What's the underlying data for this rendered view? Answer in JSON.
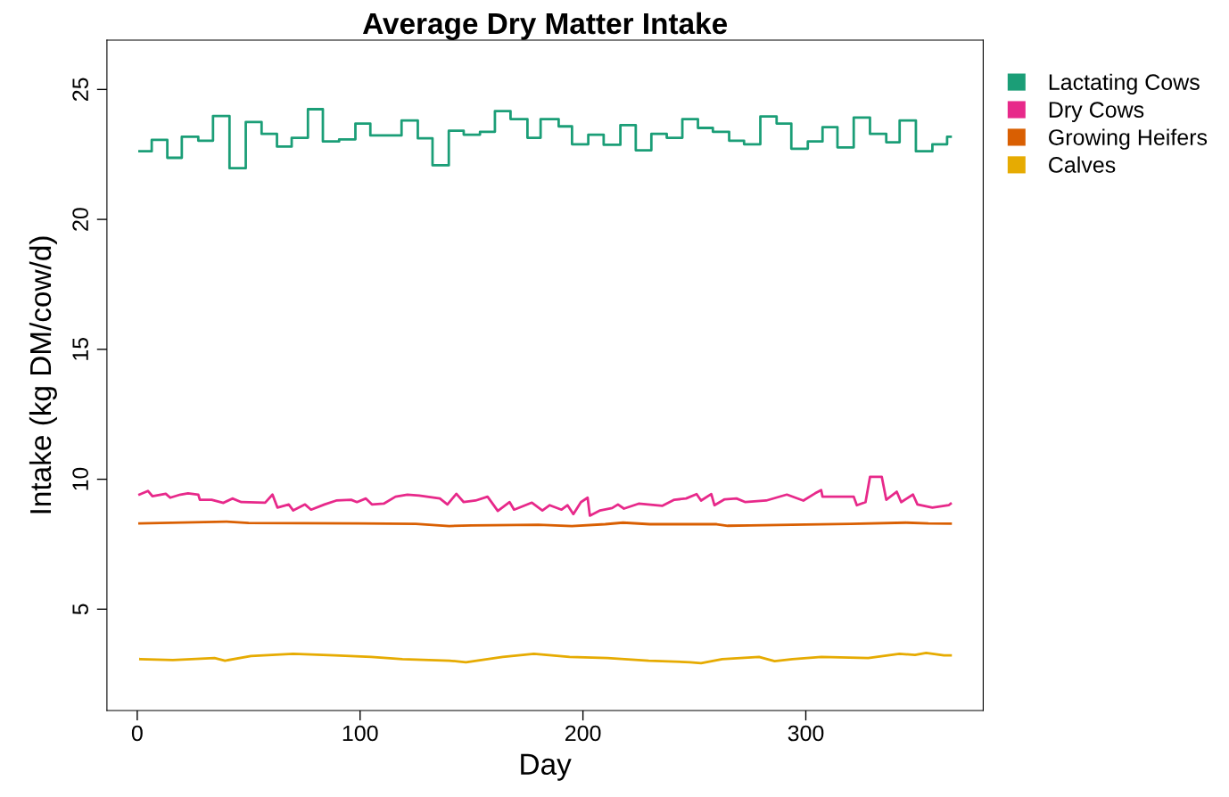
{
  "chart_data": {
    "type": "line",
    "title": "Average Dry Matter Intake",
    "xlabel": "Day",
    "ylabel": "Intake (kg DM/cow/d)",
    "xlim": [
      -13.6,
      379.6
    ],
    "ylim": [
      1.1,
      26.9
    ],
    "xticks": [
      0,
      100,
      200,
      300
    ],
    "yticks": [
      5,
      10,
      15,
      20,
      25
    ],
    "grid": false,
    "legend": "top right",
    "series": [
      {
        "name": "Lactating Cows",
        "color": "#1b9e77",
        "type": "step",
        "x": [
          1,
          6.5,
          13.5,
          20,
          27.4,
          34,
          41.4,
          48.7,
          55.8,
          62.7,
          69.3,
          76.6,
          83.3,
          90.6,
          97.9,
          104.6,
          118.6,
          125.9,
          132.5,
          139.8,
          146.5,
          153.8,
          160.5,
          167.5,
          175.1,
          181,
          189.1,
          195.1,
          202.4,
          209.3,
          216.8,
          223.7,
          230.7,
          237.6,
          244.6,
          251.6,
          258.3,
          265.6,
          272.3,
          279.6,
          286.9,
          293.5,
          300.9,
          307.5,
          314.2,
          321.5,
          328.8,
          336.1,
          342.1,
          349.4,
          356.8,
          363.4,
          365
        ],
        "values": [
          22.62,
          23.06,
          22.37,
          23.18,
          23.03,
          23.98,
          21.97,
          23.75,
          23.29,
          22.8,
          23.14,
          24.24,
          23.0,
          23.08,
          23.69,
          23.23,
          23.81,
          23.12,
          22.08,
          23.41,
          23.26,
          23.37,
          24.17,
          23.86,
          23.14,
          23.86,
          23.58,
          22.89,
          23.26,
          22.87,
          23.63,
          22.66,
          23.29,
          23.14,
          23.86,
          23.52,
          23.37,
          23.03,
          22.89,
          23.96,
          23.69,
          22.72,
          23.0,
          23.55,
          22.77,
          23.92,
          23.29,
          22.97,
          23.81,
          22.62,
          22.89,
          23.18,
          23.18
        ]
      },
      {
        "name": "Dry Cows",
        "color": "#e7298a",
        "x": [
          1,
          4.8,
          6.8,
          12.8,
          14.8,
          19.4,
          22.8,
          27.4,
          28.1,
          33.4,
          38.7,
          42.7,
          46.7,
          57.4,
          60.7,
          62.9,
          68,
          70,
          75.3,
          78,
          84,
          89.3,
          96,
          98.6,
          102.6,
          105.3,
          110.6,
          115.9,
          121.2,
          126.5,
          135.8,
          139.2,
          143.2,
          146.5,
          151.8,
          157.2,
          161.8,
          167.1,
          169.1,
          177.1,
          181.8,
          185.1,
          190.4,
          193.1,
          195.7,
          199.1,
          202.1,
          203.1,
          207.7,
          213.1,
          215.7,
          218.4,
          225,
          235.7,
          241,
          246.3,
          251,
          253,
          257.6,
          259,
          263.6,
          268.9,
          272.9,
          282.2,
          291.5,
          298.9,
          304.2,
          306.9,
          307.5,
          321.5,
          322.9,
          326.8,
          328.8,
          334.1,
          336.1,
          340.8,
          342.8,
          348.1,
          350.1,
          356.8,
          364.1,
          365
        ],
        "values": [
          9.41,
          9.55,
          9.35,
          9.44,
          9.29,
          9.41,
          9.46,
          9.41,
          9.21,
          9.21,
          9.09,
          9.26,
          9.12,
          9.1,
          9.41,
          8.91,
          9.03,
          8.8,
          9.03,
          8.83,
          9.03,
          9.18,
          9.21,
          9.12,
          9.26,
          9.03,
          9.06,
          9.33,
          9.41,
          9.37,
          9.26,
          9.03,
          9.44,
          9.12,
          9.18,
          9.33,
          8.78,
          9.12,
          8.83,
          9.1,
          8.8,
          9.0,
          8.83,
          9.0,
          8.66,
          9.12,
          9.29,
          8.6,
          8.8,
          8.89,
          9.03,
          8.87,
          9.06,
          8.98,
          9.21,
          9.26,
          9.43,
          9.18,
          9.43,
          9.0,
          9.23,
          9.26,
          9.12,
          9.18,
          9.41,
          9.18,
          9.46,
          9.58,
          9.33,
          9.33,
          9.0,
          9.12,
          10.09,
          10.09,
          9.21,
          9.52,
          9.12,
          9.41,
          9.03,
          8.91,
          9.0,
          9.06
        ]
      },
      {
        "name": "Growing Heifers",
        "color": "#d95f02",
        "x": [
          1,
          40,
          50,
          100,
          125,
          140,
          150,
          180,
          195,
          210,
          218,
          230,
          260,
          265,
          275,
          300,
          320,
          345,
          355,
          365
        ],
        "values": [
          8.3,
          8.37,
          8.32,
          8.3,
          8.28,
          8.2,
          8.22,
          8.25,
          8.2,
          8.27,
          8.33,
          8.27,
          8.27,
          8.21,
          8.22,
          8.26,
          8.28,
          8.33,
          8.3,
          8.29
        ]
      },
      {
        "name": "Calves",
        "color": "#e6ab02",
        "x": [
          1.4,
          16,
          34.7,
          39.4,
          51,
          70,
          88.6,
          105,
          119,
          140,
          147.5,
          164,
          178,
          194,
          211,
          229.5,
          248,
          253,
          262.5,
          279,
          286,
          294,
          307,
          328,
          342,
          349,
          354,
          362,
          365
        ],
        "values": [
          3.08,
          3.04,
          3.12,
          3.02,
          3.2,
          3.28,
          3.22,
          3.16,
          3.08,
          3.02,
          2.96,
          3.16,
          3.28,
          3.16,
          3.12,
          3.02,
          2.96,
          2.92,
          3.08,
          3.16,
          3.0,
          3.08,
          3.16,
          3.12,
          3.28,
          3.24,
          3.32,
          3.22,
          3.22
        ]
      }
    ]
  }
}
